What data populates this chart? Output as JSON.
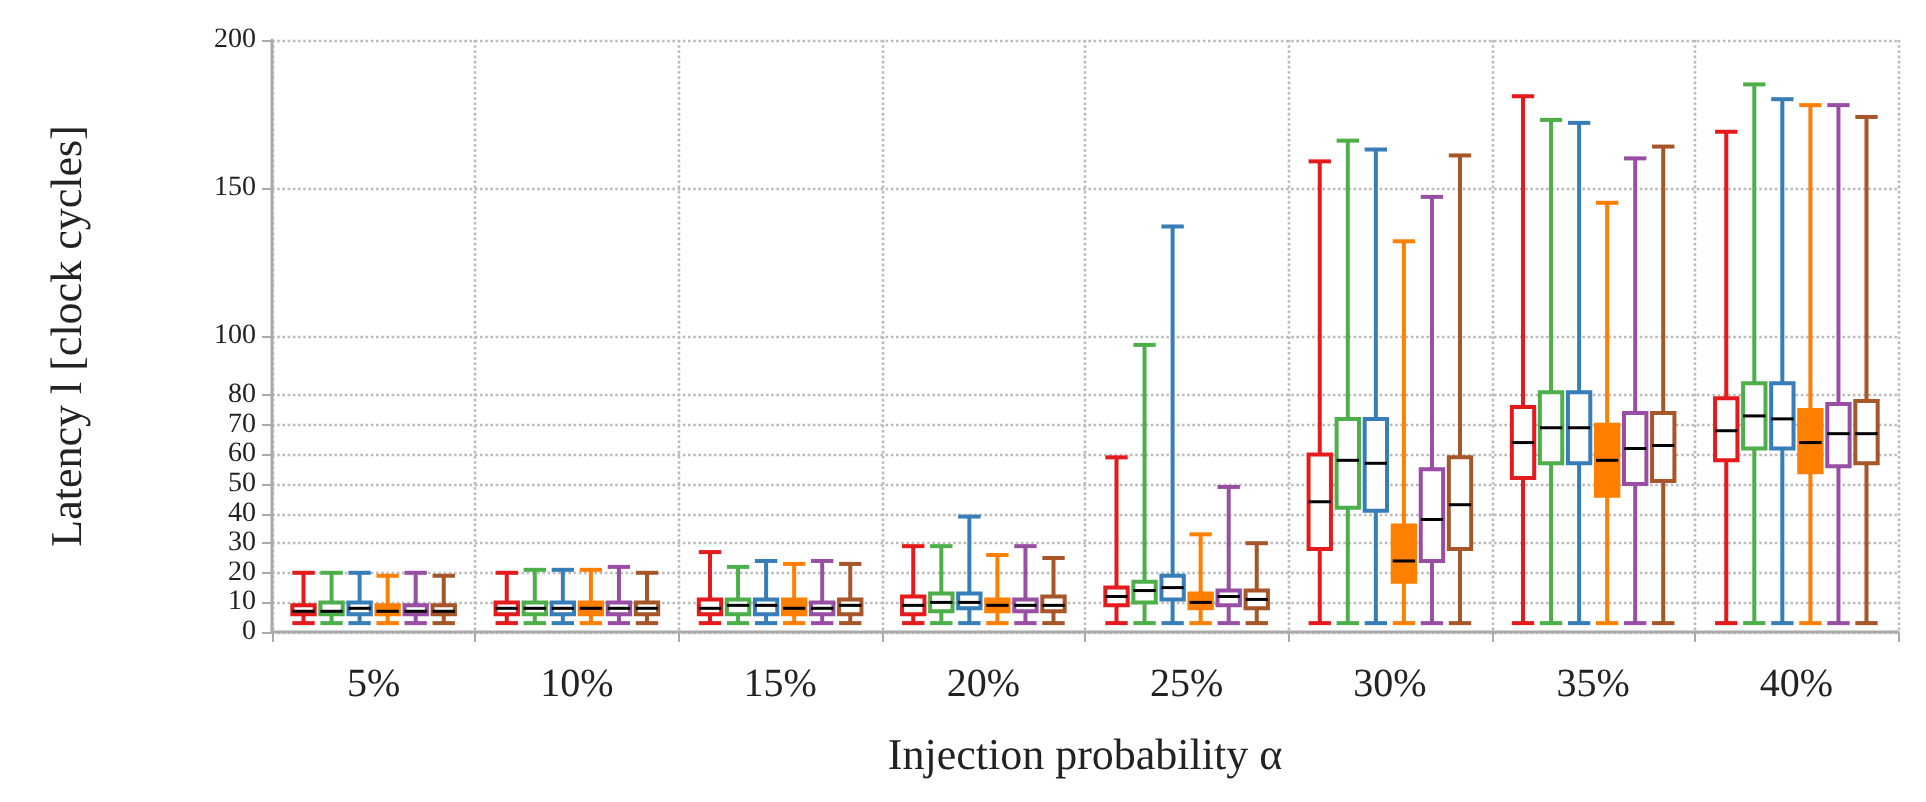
{
  "chart_data": {
    "type": "box",
    "xlabel": "Injection probability α",
    "ylabel": "Latency l [clock cycles]",
    "categories": [
      "5%",
      "10%",
      "15%",
      "20%",
      "25%",
      "30%",
      "35%",
      "40%"
    ],
    "ylim": [
      0,
      200
    ],
    "yticks": [
      0,
      10,
      20,
      30,
      40,
      50,
      60,
      70,
      80,
      100,
      150,
      200
    ],
    "grid": true,
    "series": [
      {
        "color": "#e41a1c",
        "boxes": [
          {
            "low": 3,
            "q1": 6,
            "median": 7,
            "q3": 9,
            "high": 20
          },
          {
            "low": 3,
            "q1": 6,
            "median": 8,
            "q3": 10,
            "high": 20
          },
          {
            "low": 3,
            "q1": 6,
            "median": 8,
            "q3": 11,
            "high": 27
          },
          {
            "low": 3,
            "q1": 6,
            "median": 9,
            "q3": 12,
            "high": 29
          },
          {
            "low": 3,
            "q1": 9,
            "median": 12,
            "q3": 15,
            "high": 59
          },
          {
            "low": 3,
            "q1": 28,
            "median": 44,
            "q3": 60,
            "high": 159
          },
          {
            "low": 3,
            "q1": 52,
            "median": 64,
            "q3": 76,
            "high": 181
          },
          {
            "low": 3,
            "q1": 58,
            "median": 68,
            "q3": 79,
            "high": 169
          }
        ]
      },
      {
        "color": "#4daf4a",
        "boxes": [
          {
            "low": 3,
            "q1": 6,
            "median": 7,
            "q3": 10,
            "high": 20
          },
          {
            "low": 3,
            "q1": 6,
            "median": 8,
            "q3": 10,
            "high": 21
          },
          {
            "low": 3,
            "q1": 6,
            "median": 9,
            "q3": 11,
            "high": 22
          },
          {
            "low": 3,
            "q1": 7,
            "median": 10,
            "q3": 13,
            "high": 29
          },
          {
            "low": 3,
            "q1": 10,
            "median": 14,
            "q3": 17,
            "high": 97
          },
          {
            "low": 3,
            "q1": 42,
            "median": 58,
            "q3": 72,
            "high": 166
          },
          {
            "low": 3,
            "q1": 57,
            "median": 69,
            "q3": 81,
            "high": 173
          },
          {
            "low": 3,
            "q1": 62,
            "median": 73,
            "q3": 84,
            "high": 185
          }
        ]
      },
      {
        "color": "#377eb8",
        "boxes": [
          {
            "low": 3,
            "q1": 6,
            "median": 8,
            "q3": 10,
            "high": 20
          },
          {
            "low": 3,
            "q1": 6,
            "median": 8,
            "q3": 10,
            "high": 21
          },
          {
            "low": 3,
            "q1": 6,
            "median": 9,
            "q3": 11,
            "high": 24
          },
          {
            "low": 3,
            "q1": 8,
            "median": 10,
            "q3": 13,
            "high": 39
          },
          {
            "low": 3,
            "q1": 11,
            "median": 15,
            "q3": 19,
            "high": 137
          },
          {
            "low": 3,
            "q1": 41,
            "median": 57,
            "q3": 72,
            "high": 163
          },
          {
            "low": 3,
            "q1": 57,
            "median": 69,
            "q3": 81,
            "high": 172
          },
          {
            "low": 3,
            "q1": 62,
            "median": 72,
            "q3": 84,
            "high": 180
          }
        ]
      },
      {
        "color": "#ff7f00",
        "boxes": [
          {
            "low": 3,
            "q1": 6,
            "median": 7,
            "q3": 9,
            "high": 19
          },
          {
            "low": 3,
            "q1": 6,
            "median": 8,
            "q3": 10,
            "high": 21
          },
          {
            "low": 3,
            "q1": 6,
            "median": 8,
            "q3": 11,
            "high": 23
          },
          {
            "low": 3,
            "q1": 7,
            "median": 9,
            "q3": 11,
            "high": 26
          },
          {
            "low": 3,
            "q1": 8,
            "median": 10,
            "q3": 13,
            "high": 33
          },
          {
            "low": 3,
            "q1": 17,
            "median": 24,
            "q3": 36,
            "high": 132
          },
          {
            "low": 3,
            "q1": 46,
            "median": 58,
            "q3": 70,
            "high": 145
          },
          {
            "low": 3,
            "q1": 54,
            "median": 64,
            "q3": 75,
            "high": 178
          }
        ]
      },
      {
        "color": "#984ea3",
        "boxes": [
          {
            "low": 3,
            "q1": 6,
            "median": 7,
            "q3": 9,
            "high": 20
          },
          {
            "low": 3,
            "q1": 6,
            "median": 8,
            "q3": 10,
            "high": 22
          },
          {
            "low": 3,
            "q1": 6,
            "median": 8,
            "q3": 10,
            "high": 24
          },
          {
            "low": 3,
            "q1": 7,
            "median": 9,
            "q3": 11,
            "high": 29
          },
          {
            "low": 3,
            "q1": 9,
            "median": 12,
            "q3": 14,
            "high": 49
          },
          {
            "low": 3,
            "q1": 24,
            "median": 38,
            "q3": 55,
            "high": 147
          },
          {
            "low": 3,
            "q1": 50,
            "median": 62,
            "q3": 74,
            "high": 160
          },
          {
            "low": 3,
            "q1": 56,
            "median": 67,
            "q3": 77,
            "high": 178
          }
        ]
      },
      {
        "color": "#a65628",
        "boxes": [
          {
            "low": 3,
            "q1": 6,
            "median": 7,
            "q3": 9,
            "high": 19
          },
          {
            "low": 3,
            "q1": 6,
            "median": 8,
            "q3": 10,
            "high": 20
          },
          {
            "low": 3,
            "q1": 6,
            "median": 9,
            "q3": 11,
            "high": 23
          },
          {
            "low": 3,
            "q1": 7,
            "median": 9,
            "q3": 12,
            "high": 25
          },
          {
            "low": 3,
            "q1": 8,
            "median": 11,
            "q3": 14,
            "high": 30
          },
          {
            "low": 3,
            "q1": 28,
            "median": 43,
            "q3": 59,
            "high": 161
          },
          {
            "low": 3,
            "q1": 51,
            "median": 63,
            "q3": 74,
            "high": 164
          },
          {
            "low": 3,
            "q1": 57,
            "median": 67,
            "q3": 78,
            "high": 174
          }
        ]
      }
    ]
  }
}
